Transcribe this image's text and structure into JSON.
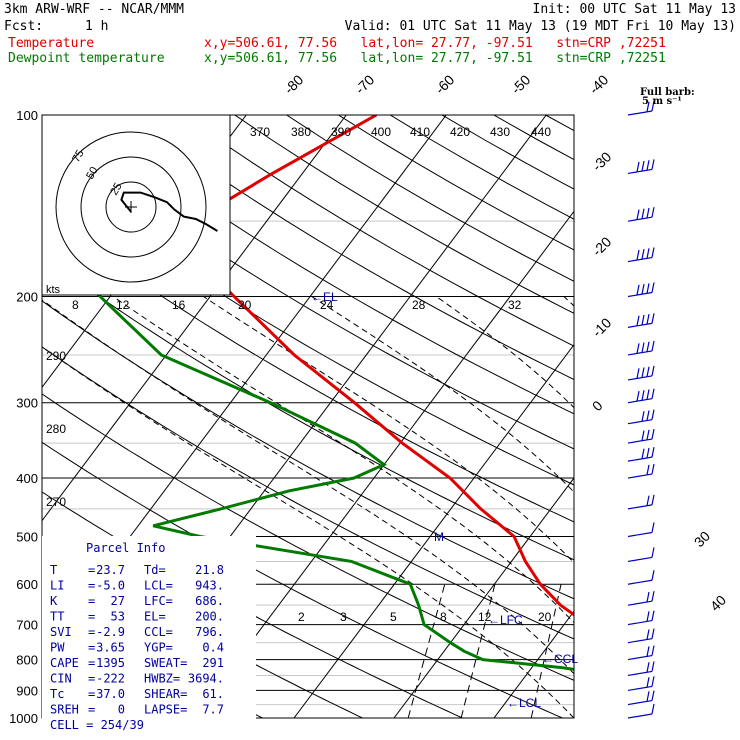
{
  "header": {
    "model": "3km ARW-WRF -- NCAR/MMM",
    "init": "Init: 00 UTC Sat 11 May 13",
    "fcst_label": "Fcst:",
    "fcst_value": "1 h",
    "valid": "Valid: 01 UTC Sat 11 May 13 (19 MDT Fri 10 May 13)",
    "temp_label": "Temperature",
    "dew_label": "Dewpoint temperature",
    "loc": "x,y=506.61, 77.56   lat,lon= 27.77, -97.51   stn=CRP ,72251"
  },
  "barb_key": {
    "title": "Full barb:",
    "unit": "5 m s⁻¹"
  },
  "colors": {
    "temperature": "#e00000",
    "dewpoint": "#007a00",
    "text": "#0000a0",
    "grid": "#000000"
  },
  "chart_data": {
    "type": "line",
    "pressure_ticks": [
      100,
      200,
      300,
      400,
      500,
      600,
      700,
      800,
      900,
      1000
    ],
    "isotherm_labels": [
      -80,
      -70,
      -60,
      -50,
      -40,
      -30,
      -20,
      -10,
      0,
      30,
      40
    ],
    "theta_labels": [
      370,
      380,
      390,
      400,
      410,
      420,
      430,
      440,
      290,
      280,
      270
    ],
    "mixing_ratio_labels": [
      "2",
      "3",
      "5",
      "8",
      "12",
      "20"
    ],
    "hodo_speed_labels": [
      "8",
      "12",
      "16",
      "20",
      "24",
      "28",
      "32"
    ],
    "hodo_unit": "kts",
    "hodo_ring_labels": [
      "25",
      "50",
      "75"
    ],
    "markers": {
      "el": "EL",
      "lfc": "LFC",
      "ccl": "CCL",
      "lcl": "LCL"
    },
    "series": [
      {
        "name": "Temperature",
        "p": [
          1000,
          975,
          950,
          925,
          900,
          875,
          850,
          825,
          800,
          775,
          750,
          725,
          700,
          650,
          600,
          550,
          500,
          450,
          400,
          350,
          300,
          250,
          200,
          175,
          150,
          125,
          100
        ],
        "t": [
          23.7,
          22.8,
          21.7,
          20.0,
          18.0,
          16.0,
          14.5,
          12.5,
          10.2,
          8.2,
          6.6,
          4.8,
          2.4,
          -1.8,
          -5.4,
          -8.6,
          -11.6,
          -17.0,
          -22.4,
          -29.8,
          -37.6,
          -47.2,
          -57.6,
          -63.6,
          -67.4,
          -63.0,
          -57.0
        ]
      },
      {
        "name": "Dewpoint temperature",
        "p": [
          1000,
          975,
          950,
          925,
          900,
          875,
          850,
          825,
          800,
          775,
          750,
          700,
          650,
          600,
          550,
          500,
          480,
          450,
          420,
          400,
          380,
          350,
          300,
          250,
          200,
          150,
          100
        ],
        "t": [
          21.8,
          21.5,
          20.2,
          19.8,
          18.6,
          14.0,
          9.0,
          3.0,
          -5.5,
          -8.0,
          -10.0,
          -14.0,
          -16.0,
          -18.4,
          -26.0,
          -43.0,
          -48.5,
          -43.0,
          -37.5,
          -32.0,
          -30.0,
          -34.5,
          -46.0,
          -60.5,
          -71.0,
          -81.0,
          -87.0
        ]
      }
    ],
    "hodograph_kt": [
      [
        0,
        2
      ],
      [
        -4,
        -3
      ],
      [
        -3,
        -6
      ],
      [
        4,
        -6
      ],
      [
        10,
        -4
      ],
      [
        15,
        -2
      ],
      [
        18,
        1
      ],
      [
        22,
        4
      ],
      [
        27,
        5
      ],
      [
        31,
        7
      ],
      [
        36,
        10
      ]
    ],
    "wind_barbs_kt": [
      {
        "p": 100,
        "spd": 20
      },
      {
        "p": 125,
        "spd": 40
      },
      {
        "p": 150,
        "spd": 40
      },
      {
        "p": 175,
        "spd": 40
      },
      {
        "p": 200,
        "spd": 40
      },
      {
        "p": 225,
        "spd": 40
      },
      {
        "p": 250,
        "spd": 40
      },
      {
        "p": 275,
        "spd": 40
      },
      {
        "p": 300,
        "spd": 40
      },
      {
        "p": 325,
        "spd": 30
      },
      {
        "p": 350,
        "spd": 30
      },
      {
        "p": 375,
        "spd": 30
      },
      {
        "p": 400,
        "spd": 20
      },
      {
        "p": 450,
        "spd": 20
      },
      {
        "p": 500,
        "spd": 10
      },
      {
        "p": 550,
        "spd": 10
      },
      {
        "p": 600,
        "spd": 10
      },
      {
        "p": 650,
        "spd": 20
      },
      {
        "p": 700,
        "spd": 20
      },
      {
        "p": 750,
        "spd": 20
      },
      {
        "p": 800,
        "spd": 20
      },
      {
        "p": 850,
        "spd": 20
      },
      {
        "p": 900,
        "spd": 20
      },
      {
        "p": 950,
        "spd": 20
      },
      {
        "p": 1000,
        "spd": 10
      }
    ]
  },
  "parcel": {
    "title": "Parcel Info",
    "rows": [
      {
        "k1": "T",
        "v1": "23.7",
        "k2": "Td",
        "v2": "21.8"
      },
      {
        "k1": "LI",
        "v1": "-5.0",
        "k2": "LCL",
        "v2": "943."
      },
      {
        "k1": "K",
        "v1": "27",
        "k2": "LFC",
        "v2": "686."
      },
      {
        "k1": "TT",
        "v1": "53",
        "k2": "EL",
        "v2": "200."
      },
      {
        "k1": "SVI",
        "v1": "-2.9",
        "k2": "CCL",
        "v2": "796."
      },
      {
        "k1": "PW",
        "v1": "3.65",
        "k2": "YGP",
        "v2": "0.4"
      },
      {
        "k1": "CAPE",
        "v1": "1395",
        "k2": "SWEAT",
        "v2": "291"
      },
      {
        "k1": "CIN",
        "v1": "-222",
        "k2": "HWBZ",
        "v2": "3694."
      },
      {
        "k1": "Tc",
        "v1": "37.0",
        "k2": "SHEAR",
        "v2": "61."
      },
      {
        "k1": "SREH",
        "v1": "0",
        "k2": "LAPSE",
        "v2": "7.7"
      }
    ],
    "cell": "CELL = 254/39"
  }
}
